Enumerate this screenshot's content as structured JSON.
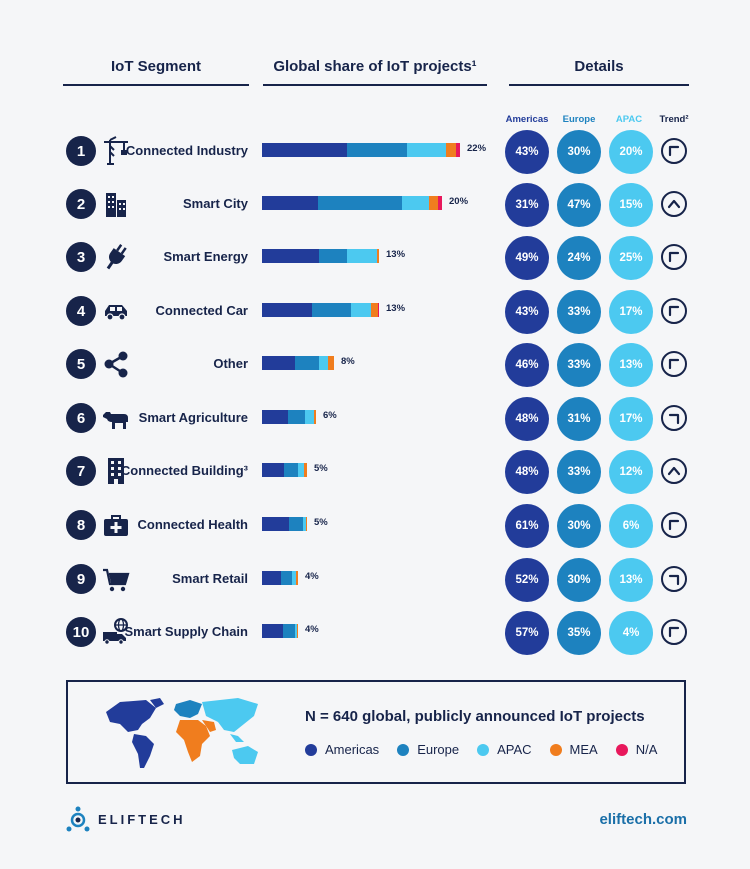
{
  "headers": {
    "segment": "IoT Segment",
    "share": "Global share of IoT projects¹",
    "details": "Details"
  },
  "subheaders": {
    "americas": "Americas",
    "europe": "Europe",
    "apac": "APAC",
    "trend": "Trend²"
  },
  "colors": {
    "americas": "#223c9a",
    "europe": "#1d82bf",
    "apac": "#4cc9f0",
    "mea": "#f07d1e",
    "na": "#e8185c",
    "navy": "#17244a"
  },
  "chart_data": {
    "type": "bar",
    "title": "Global share of IoT projects¹",
    "categories": [
      "Connected Industry",
      "Smart City",
      "Smart Energy",
      "Connected Car",
      "Other",
      "Smart Agriculture",
      "Connected Building³",
      "Connected Health",
      "Smart Retail",
      "Smart Supply Chain"
    ],
    "values": [
      22,
      20,
      13,
      13,
      8,
      6,
      5,
      5,
      4,
      4
    ],
    "value_labels": [
      "22%",
      "20%",
      "13%",
      "13%",
      "8%",
      "6%",
      "5%",
      "5%",
      "4%",
      "4%"
    ],
    "stack_order": [
      "Americas",
      "Europe",
      "APAC",
      "MEA",
      "N/A"
    ],
    "stack_fractions": [
      [
        0.43,
        0.3,
        0.2,
        0.05,
        0.02
      ],
      [
        0.31,
        0.47,
        0.15,
        0.05,
        0.02
      ],
      [
        0.49,
        0.24,
        0.25,
        0.02,
        0.0
      ],
      [
        0.43,
        0.33,
        0.17,
        0.06,
        0.01
      ],
      [
        0.46,
        0.33,
        0.13,
        0.08,
        0.0
      ],
      [
        0.48,
        0.31,
        0.17,
        0.04,
        0.0
      ],
      [
        0.48,
        0.33,
        0.12,
        0.07,
        0.0
      ],
      [
        0.61,
        0.3,
        0.06,
        0.03,
        0.0
      ],
      [
        0.52,
        0.3,
        0.13,
        0.05,
        0.0
      ],
      [
        0.57,
        0.35,
        0.04,
        0.04,
        0.0
      ]
    ],
    "max": 22
  },
  "rows": [
    {
      "num": "1",
      "label": "Connected Industry",
      "icon": "crane-icon",
      "americas": "43%",
      "europe": "30%",
      "apac": "20%",
      "trend": "up-right"
    },
    {
      "num": "2",
      "label": "Smart City",
      "icon": "city-icon",
      "americas": "31%",
      "europe": "47%",
      "apac": "15%",
      "trend": "up"
    },
    {
      "num": "3",
      "label": "Smart Energy",
      "icon": "plug-icon",
      "americas": "49%",
      "europe": "24%",
      "apac": "25%",
      "trend": "up-right"
    },
    {
      "num": "4",
      "label": "Connected Car",
      "icon": "car-icon",
      "americas": "43%",
      "europe": "33%",
      "apac": "17%",
      "trend": "up-right"
    },
    {
      "num": "5",
      "label": "Other",
      "icon": "share-icon",
      "americas": "46%",
      "europe": "33%",
      "apac": "13%",
      "trend": "up-right"
    },
    {
      "num": "6",
      "label": "Smart Agriculture",
      "icon": "cow-icon",
      "americas": "48%",
      "europe": "31%",
      "apac": "17%",
      "trend": "up-left"
    },
    {
      "num": "7",
      "label": "Connected Building³",
      "icon": "building-icon",
      "americas": "48%",
      "europe": "33%",
      "apac": "12%",
      "trend": "up"
    },
    {
      "num": "8",
      "label": "Connected Health",
      "icon": "medkit-icon",
      "americas": "61%",
      "europe": "30%",
      "apac": "6%",
      "trend": "up-right"
    },
    {
      "num": "9",
      "label": "Smart Retail",
      "icon": "cart-icon",
      "americas": "52%",
      "europe": "30%",
      "apac": "13%",
      "trend": "up-left"
    },
    {
      "num": "10",
      "label": "Smart Supply Chain",
      "icon": "truck-globe-icon",
      "americas": "57%",
      "europe": "35%",
      "apac": "4%",
      "trend": "up-right"
    }
  ],
  "legend": {
    "title": "N = 640 global, publicly announced IoT projects",
    "items": [
      "Americas",
      "Europe",
      "APAC",
      "MEA",
      "N/A"
    ]
  },
  "footer": {
    "brand": "ELIFTECH",
    "site": "eliftech.com"
  }
}
